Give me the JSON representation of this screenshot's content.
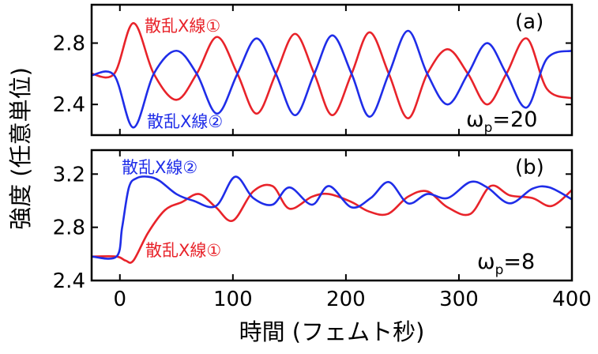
{
  "chart_data": [
    {
      "type": "line",
      "panel": "(a)",
      "parameter": {
        "symbol": "ω",
        "subscript": "p",
        "value": "=20"
      },
      "xlabel": "時間 (フェムト秒)",
      "ylabel": "強度 (任意単位)",
      "xlim": [
        -25,
        400
      ],
      "ylim": [
        2.2,
        3.05
      ],
      "xticks": [
        0,
        100,
        200,
        300,
        400
      ],
      "yticks": [
        2.4,
        2.8
      ],
      "ytick_labels": [
        "2.4",
        "2.8"
      ],
      "series": [
        {
          "name": "散乱X線①",
          "color": "#e8232a",
          "x": [
            -25,
            -5,
            12,
            30,
            50,
            68,
            86,
            104,
            121,
            138,
            155,
            172,
            188,
            205,
            221,
            238,
            255,
            272,
            290,
            308,
            325,
            342,
            360,
            378,
            400
          ],
          "y": [
            2.6,
            2.6,
            2.93,
            2.6,
            2.43,
            2.6,
            2.84,
            2.6,
            2.34,
            2.6,
            2.86,
            2.6,
            2.33,
            2.6,
            2.87,
            2.6,
            2.31,
            2.6,
            2.76,
            2.6,
            2.4,
            2.6,
            2.83,
            2.5,
            2.44
          ]
        },
        {
          "name": "散乱X線②",
          "color": "#1f2de8",
          "x": [
            -25,
            -5,
            12,
            30,
            50,
            68,
            86,
            104,
            121,
            138,
            155,
            172,
            188,
            205,
            221,
            238,
            255,
            272,
            290,
            308,
            325,
            342,
            360,
            378,
            400
          ],
          "y": [
            2.59,
            2.59,
            2.25,
            2.6,
            2.75,
            2.6,
            2.34,
            2.6,
            2.83,
            2.6,
            2.33,
            2.6,
            2.85,
            2.6,
            2.32,
            2.6,
            2.88,
            2.6,
            2.4,
            2.6,
            2.8,
            2.6,
            2.38,
            2.7,
            2.75
          ]
        }
      ],
      "labels": [
        {
          "text": "散乱X線①",
          "series": 0
        },
        {
          "text": "散乱X線②",
          "series": 1
        }
      ]
    },
    {
      "type": "line",
      "panel": "(b)",
      "parameter": {
        "symbol": "ω",
        "subscript": "p",
        "value": "=8"
      },
      "xlabel": "時間 (フェムト秒)",
      "ylabel": "強度 (任意単位)",
      "xlim": [
        -25,
        400
      ],
      "ylim": [
        2.4,
        3.38
      ],
      "xticks": [
        0,
        100,
        200,
        300,
        400
      ],
      "xtick_labels": [
        "0",
        "100",
        "200",
        "300",
        "400"
      ],
      "yticks": [
        2.4,
        2.8,
        3.2
      ],
      "ytick_labels": [
        "2.4",
        "2.8",
        "3.2"
      ],
      "series": [
        {
          "name": "散乱X線①",
          "color": "#e8232a",
          "x": [
            -25,
            -3,
            5,
            12,
            25,
            40,
            55,
            70,
            85,
            100,
            118,
            135,
            150,
            170,
            185,
            205,
            220,
            237,
            255,
            272,
            290,
            310,
            328,
            345,
            365,
            382,
            400
          ],
          "y": [
            2.58,
            2.58,
            2.55,
            2.55,
            2.76,
            2.93,
            2.99,
            3.05,
            2.95,
            2.85,
            3.07,
            3.11,
            2.94,
            3.03,
            3.05,
            2.99,
            2.92,
            2.9,
            3.03,
            3.07,
            2.95,
            2.9,
            3.11,
            3.04,
            3.02,
            2.96,
            3.08
          ]
        },
        {
          "name": "散乱X線②",
          "color": "#1f2de8",
          "x": [
            -25,
            -3,
            2,
            8,
            15,
            25,
            35,
            50,
            65,
            85,
            102,
            118,
            135,
            150,
            170,
            185,
            205,
            222,
            238,
            255,
            272,
            290,
            310,
            325,
            345,
            365,
            380,
            400
          ],
          "y": [
            2.58,
            2.58,
            2.8,
            3.1,
            3.17,
            3.18,
            3.15,
            3.05,
            3.0,
            2.96,
            3.18,
            3.02,
            2.97,
            3.1,
            2.97,
            3.11,
            2.95,
            3.02,
            3.14,
            2.98,
            3.05,
            3.02,
            3.14,
            3.1,
            2.98,
            3.09,
            3.1,
            3.01
          ]
        }
      ],
      "labels": [
        {
          "text": "散乱X線②",
          "series": 1
        },
        {
          "text": "散乱X線①",
          "series": 0
        }
      ]
    }
  ]
}
